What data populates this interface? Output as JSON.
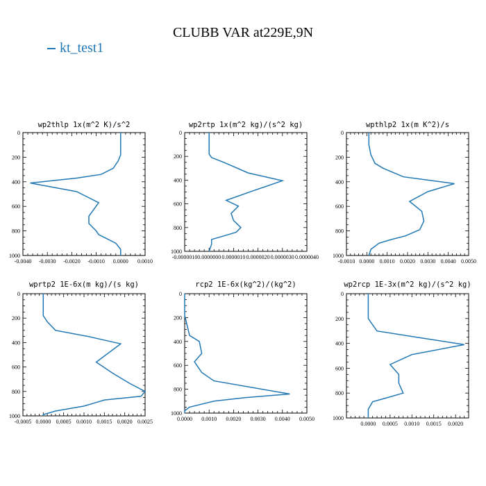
{
  "figure": {
    "title": "CLUBB VAR at229E,9N",
    "legend_label": "kt_test1",
    "series_color": "#1f77b4"
  },
  "chart_data": [
    {
      "type": "line",
      "title": "wp2thlp   1x(m^2 K)/s^2",
      "xlim": [
        -0.004,
        0.001
      ],
      "ylim": [
        1000,
        0
      ],
      "xticks": [
        -0.004,
        -0.003,
        -0.002,
        -0.001,
        0.0,
        0.001
      ],
      "xtick_labels": [
        "-0.0040",
        "-0.0030",
        "-0.0020",
        "-0.0010",
        "0.0000",
        "0.0010"
      ],
      "yticks": [
        0,
        200,
        400,
        600,
        800,
        1000
      ],
      "ytick_labels": [
        "0",
        "200",
        "400",
        "600",
        "800",
        "1000"
      ],
      "series": [
        {
          "name": "kt_test1",
          "x": [
            0.0,
            0.0,
            0.0,
            0.0,
            -0.0001,
            -0.0003,
            -0.0008,
            -0.0018,
            -0.0037,
            -0.0018,
            -0.0009,
            -0.0013,
            -0.0013,
            -0.001,
            -0.0009,
            -0.0006,
            -0.0002,
            0.0,
            0.0
          ],
          "y": [
            0,
            50,
            100,
            180,
            230,
            290,
            340,
            370,
            410,
            480,
            570,
            680,
            740,
            800,
            830,
            860,
            900,
            950,
            1000
          ]
        }
      ]
    },
    {
      "type": "line",
      "title": "wp2rtp   1x(m^2 kg)/(s^2 kg)",
      "xlim": [
        -1e-06,
        4e-06
      ],
      "ylim": [
        1000,
        0
      ],
      "xticks": [
        -1e-06,
        0.0,
        1e-06,
        2e-06,
        3e-06,
        4e-06
      ],
      "xtick_labels": [
        "-0.0000010",
        "0.0000000",
        "0.0000010",
        "0.0000020",
        "0.0000030",
        "0.0000040"
      ],
      "yticks": [
        0,
        200,
        400,
        600,
        800,
        1000
      ],
      "ytick_labels": [
        "0",
        "200",
        "400",
        "600",
        "800",
        "1000"
      ],
      "series": [
        {
          "name": "kt_test1",
          "x": [
            0.0,
            0.0,
            0.0,
            0.0,
            1e-07,
            6e-07,
            1.6e-06,
            3e-06,
            1.8e-06,
            7e-07,
            1.2e-06,
            9e-07,
            1e-06,
            1.3e-06,
            1.1e-06,
            6e-07,
            1e-07,
            1e-07,
            0.0
          ],
          "y": [
            0,
            50,
            100,
            180,
            210,
            250,
            340,
            405,
            490,
            570,
            620,
            680,
            740,
            800,
            840,
            870,
            900,
            940,
            1000
          ]
        }
      ]
    },
    {
      "type": "line",
      "title": "wpthlp2   1x(m K^2)/s",
      "xlim": [
        -0.001,
        0.005
      ],
      "ylim": [
        1000,
        0
      ],
      "xticks": [
        -0.001,
        0.0,
        0.001,
        0.002,
        0.003,
        0.004,
        0.005
      ],
      "xtick_labels": [
        "-0.0010",
        "0.0000",
        "0.0010",
        "0.0020",
        "0.0030",
        "0.0040",
        "0.0050"
      ],
      "yticks": [
        0,
        200,
        400,
        600,
        800,
        1000
      ],
      "ytick_labels": [
        "0",
        "200",
        "400",
        "600",
        "800",
        "1000"
      ],
      "series": [
        {
          "name": "kt_test1",
          "x": [
            0.0001,
            0.0001,
            0.0001,
            0.0002,
            0.0004,
            0.0008,
            0.0018,
            0.0043,
            0.003,
            0.0021,
            0.0027,
            0.0028,
            0.0026,
            0.0019,
            0.0012,
            0.0006,
            0.0002,
            0.0001
          ],
          "y": [
            0,
            50,
            100,
            180,
            250,
            290,
            360,
            415,
            480,
            560,
            640,
            720,
            790,
            840,
            870,
            900,
            950,
            1000
          ]
        }
      ]
    },
    {
      "type": "line",
      "title": "wprtp2   1E-6x(m kg)/(s kg)",
      "xlim": [
        -0.0005,
        0.0025
      ],
      "ylim": [
        1000,
        0
      ],
      "xticks": [
        -0.0005,
        0.0,
        0.0005,
        0.001,
        0.0015,
        0.002,
        0.0025
      ],
      "xtick_labels": [
        "-0.0005",
        "0.0000",
        "0.0005",
        "0.0010",
        "0.0015",
        "0.0020",
        "0.0025"
      ],
      "yticks": [
        0,
        200,
        400,
        600,
        800,
        1000
      ],
      "ytick_labels": [
        "0",
        "200",
        "400",
        "600",
        "800",
        "1000"
      ],
      "series": [
        {
          "name": "kt_test1",
          "x": [
            0.0,
            0.0,
            0.0,
            0.0,
            0.0001,
            0.0003,
            0.0011,
            0.0019,
            0.0013,
            0.0017,
            0.0021,
            0.0025,
            0.0024,
            0.0015,
            0.001,
            0.0003,
            0.0,
            0.0
          ],
          "y": [
            0,
            50,
            100,
            180,
            230,
            300,
            350,
            410,
            560,
            650,
            730,
            800,
            840,
            870,
            920,
            960,
            990,
            1000
          ]
        }
      ]
    },
    {
      "type": "line",
      "title": "rcp2   1E-6x(kg^2)/(kg^2)",
      "xlim": [
        0.0,
        0.005
      ],
      "ylim": [
        1000,
        0
      ],
      "xticks": [
        0.0,
        0.001,
        0.002,
        0.003,
        0.004,
        0.005
      ],
      "xtick_labels": [
        "0.0000",
        "0.0010",
        "0.0020",
        "0.0030",
        "0.0040",
        "0.0050"
      ],
      "yticks": [
        0,
        200,
        400,
        600,
        800,
        1000
      ],
      "ytick_labels": [
        "0",
        "200",
        "400",
        "600",
        "800",
        "1000"
      ],
      "series": [
        {
          "name": "kt_test1",
          "x": [
            0.0,
            0.0,
            0.0,
            0.0002,
            0.0006,
            0.0007,
            0.0004,
            0.0006,
            0.0007,
            0.0012,
            0.0043,
            0.0025,
            0.0012,
            0.0002,
            0.0,
            0.0
          ],
          "y": [
            0,
            100,
            180,
            350,
            400,
            500,
            570,
            630,
            660,
            730,
            840,
            870,
            900,
            950,
            980,
            1000
          ]
        }
      ]
    },
    {
      "type": "line",
      "title": "wp2rcp   1E-3x(m^2 kg)/(s^2 kg)",
      "xlim": [
        -0.0005,
        0.0023
      ],
      "ylim": [
        1000,
        0
      ],
      "xticks": [
        0.0,
        0.0005,
        0.001,
        0.0015,
        0.002
      ],
      "xtick_labels": [
        "0.0000",
        "0.0005",
        "0.0010",
        "0.0015",
        "0.0020"
      ],
      "yticks": [
        0,
        200,
        400,
        600,
        800,
        1000
      ],
      "ytick_labels": [
        "0",
        "200",
        "400",
        "600",
        "800",
        "1000"
      ],
      "series": [
        {
          "name": "kt_test1",
          "x": [
            0.0,
            0.0,
            0.0,
            0.0,
            0.0001,
            0.0002,
            0.0011,
            0.0022,
            0.001,
            0.0005,
            0.0007,
            0.0007,
            0.0008,
            0.0004,
            0.0001,
            0.0,
            0.0
          ],
          "y": [
            0,
            100,
            180,
            200,
            250,
            300,
            350,
            410,
            490,
            570,
            650,
            720,
            800,
            840,
            870,
            930,
            1000
          ]
        }
      ]
    }
  ]
}
